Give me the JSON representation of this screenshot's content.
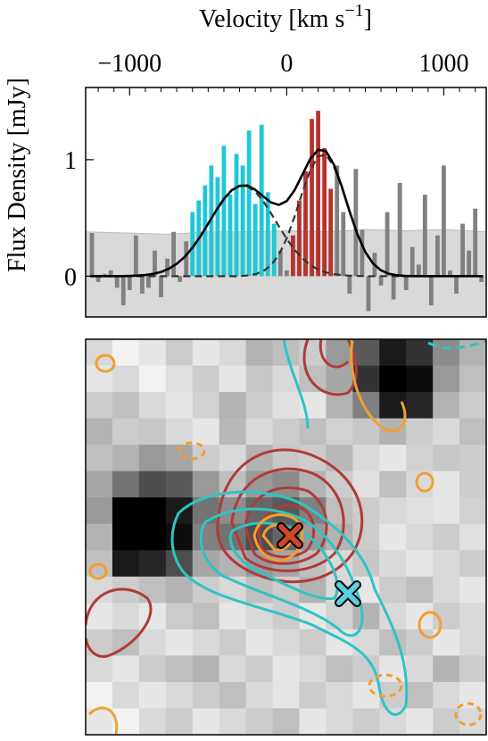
{
  "chart_data": [
    {
      "type": "spectrum",
      "xlabel": {
        "text": "Velocity [km s",
        "sup": "−1",
        "tail": "]"
      },
      "ylabel": "Flux Density [mJy]",
      "xlim": [
        -1280,
        1270
      ],
      "ylim": [
        -0.35,
        1.62
      ],
      "xticks": [
        {
          "value": -1000,
          "label": "−1000"
        },
        0,
        1000
      ],
      "xminorticks": [
        -1200,
        -1100,
        -900,
        -800,
        -700,
        -600,
        -500,
        -400,
        -300,
        -200,
        -100,
        100,
        200,
        300,
        400,
        500,
        600,
        700,
        800,
        900,
        1100,
        1200
      ],
      "yticks": [
        0,
        1
      ],
      "shade": {
        "color": "#d9d9d9",
        "x": [
          -1280,
          -1000,
          -750,
          -500,
          -250,
          0,
          250,
          500,
          750,
          1000,
          1270
        ],
        "values": [
          0.38,
          0.37,
          0.36,
          0.38,
          0.38,
          0.39,
          0.38,
          0.4,
          0.39,
          0.4,
          0.38
        ]
      },
      "series": [
        {
          "color": "#808080",
          "x": [
            -1240,
            -1200,
            -1160,
            -1120,
            -1080,
            -1040,
            -1000,
            -960,
            -920,
            -880,
            -840,
            -800,
            -760,
            -720,
            -680,
            -640,
            -40,
            0,
            320,
            360,
            400,
            440,
            480,
            520,
            560,
            600,
            640,
            680,
            720,
            760,
            800,
            840,
            880,
            920,
            960,
            1000,
            1040,
            1080,
            1120,
            1160,
            1200,
            1240
          ],
          "values": [
            0.37,
            -0.05,
            0.02,
            0.05,
            -0.1,
            -0.25,
            -0.12,
            0.35,
            -0.15,
            -0.1,
            0.22,
            -0.18,
            0.15,
            0.38,
            -0.05,
            0.3,
            0.22,
            0.05,
            0.95,
            0.55,
            -0.15,
            0.92,
            0.4,
            -0.3,
            0.2,
            -0.08,
            0.55,
            -0.2,
            0.8,
            -0.12,
            0.25,
            0.1,
            0.7,
            -0.25,
            0.35,
            0.95,
            0.05,
            -0.15,
            0.45,
            0.22,
            0.58,
            -0.05
          ]
        },
        {
          "color": "#1fc8d6",
          "x": [
            -600,
            -560,
            -520,
            -480,
            -440,
            -400,
            -360,
            -320,
            -280,
            -240,
            -200,
            -160,
            -120,
            -80
          ],
          "values": [
            0.55,
            0.65,
            0.78,
            0.95,
            0.85,
            1.12,
            0.7,
            1.05,
            0.95,
            1.25,
            0.62,
            1.3,
            0.72,
            0.45
          ]
        },
        {
          "color": "#b8322e",
          "x": [
            40,
            80,
            120,
            160,
            200,
            240,
            280
          ],
          "values": [
            0.35,
            0.65,
            0.9,
            1.35,
            1.42,
            1.1,
            0.75
          ]
        }
      ],
      "fit_x": [
        -1250,
        -1200,
        -1150,
        -1100,
        -1050,
        -1000,
        -950,
        -900,
        -850,
        -800,
        -750,
        -700,
        -650,
        -600,
        -550,
        -500,
        -450,
        -400,
        -350,
        -300,
        -250,
        -200,
        -150,
        -100,
        -50,
        0,
        50,
        100,
        150,
        200,
        250,
        300,
        350,
        400,
        450,
        500,
        550,
        600,
        650,
        700,
        750,
        800,
        850,
        900,
        950,
        1000,
        1050,
        1100,
        1150,
        1200,
        1250
      ],
      "lines": [
        {
          "color": "#333333",
          "style": "dashed",
          "values": [
            0,
            0,
            0,
            0,
            0,
            0.002,
            0.005,
            0.01,
            0.02,
            0.036,
            0.064,
            0.106,
            0.165,
            0.244,
            0.341,
            0.451,
            0.562,
            0.663,
            0.738,
            0.776,
            0.772,
            0.725,
            0.644,
            0.54,
            0.428,
            0.321,
            0.227,
            0.152,
            0.096,
            0.057,
            0.032,
            0.017,
            0.009,
            0.004,
            0.002,
            0,
            0,
            0,
            0,
            0,
            0,
            0,
            0,
            0,
            0,
            0,
            0,
            0,
            0,
            0,
            0
          ]
        },
        {
          "color": "#333333",
          "style": "dashed",
          "values": [
            0,
            0,
            0,
            0,
            0,
            0,
            0,
            0,
            0,
            0,
            0,
            0,
            0,
            0,
            0,
            0,
            0,
            0,
            0,
            0,
            0.006,
            0.017,
            0.042,
            0.093,
            0.184,
            0.324,
            0.511,
            0.721,
            0.911,
            1.029,
            1.041,
            0.942,
            0.763,
            0.553,
            0.358,
            0.208,
            0.108,
            0.05,
            0.021,
            0.008,
            0.002,
            0,
            0,
            0,
            0,
            0,
            0,
            0,
            0,
            0,
            0
          ]
        },
        {
          "color": "#000000",
          "style": "solid",
          "values": [
            0,
            0,
            0,
            0,
            0,
            0.002,
            0.005,
            0.01,
            0.02,
            0.036,
            0.064,
            0.106,
            0.165,
            0.244,
            0.341,
            0.451,
            0.562,
            0.663,
            0.738,
            0.776,
            0.778,
            0.742,
            0.686,
            0.633,
            0.612,
            0.645,
            0.738,
            0.873,
            1.007,
            1.086,
            1.073,
            0.959,
            0.772,
            0.557,
            0.36,
            0.208,
            0.108,
            0.05,
            0.021,
            0.008,
            0.002,
            0,
            0,
            0,
            0,
            0,
            0,
            0,
            0,
            0,
            0
          ]
        }
      ]
    },
    {
      "type": "image",
      "pixels": [
        [
          0.85,
          0.95,
          0.9,
          0.8,
          0.9,
          0.85,
          0.7,
          0.75,
          0.8,
          0.6,
          0.35,
          0.1,
          0.2,
          0.55,
          0.7
        ],
        [
          0.9,
          0.85,
          0.95,
          0.88,
          0.8,
          0.9,
          0.78,
          0.85,
          0.75,
          0.65,
          0.2,
          0.0,
          0.05,
          0.6,
          0.75
        ],
        [
          0.8,
          0.75,
          0.85,
          0.9,
          0.82,
          0.7,
          0.8,
          0.88,
          0.9,
          0.7,
          0.5,
          0.1,
          0.15,
          0.7,
          0.8
        ],
        [
          0.7,
          0.8,
          0.78,
          0.85,
          0.9,
          0.72,
          0.85,
          0.8,
          0.75,
          0.82,
          0.78,
          0.7,
          0.8,
          0.85,
          0.75
        ],
        [
          0.75,
          0.7,
          0.6,
          0.65,
          0.8,
          0.85,
          0.7,
          0.78,
          0.8,
          0.72,
          0.85,
          0.9,
          0.82,
          0.78,
          0.8
        ],
        [
          0.65,
          0.45,
          0.3,
          0.35,
          0.6,
          0.75,
          0.6,
          0.55,
          0.7,
          0.8,
          0.88,
          0.75,
          0.85,
          0.9,
          0.8
        ],
        [
          0.6,
          0.0,
          0.0,
          0.1,
          0.45,
          0.55,
          0.4,
          0.35,
          0.5,
          0.75,
          0.8,
          0.85,
          0.88,
          0.9,
          0.82
        ],
        [
          0.7,
          0.0,
          0.0,
          0.05,
          0.5,
          0.45,
          0.3,
          0.4,
          0.6,
          0.7,
          0.8,
          0.9,
          0.85,
          0.8,
          0.88
        ],
        [
          0.75,
          0.1,
          0.15,
          0.3,
          0.65,
          0.7,
          0.6,
          0.65,
          0.75,
          0.85,
          0.78,
          0.85,
          0.9,
          0.85,
          0.8
        ],
        [
          0.85,
          0.8,
          0.75,
          0.7,
          0.8,
          0.85,
          0.75,
          0.8,
          0.7,
          0.85,
          0.9,
          0.8,
          0.75,
          0.85,
          0.9
        ],
        [
          0.9,
          0.85,
          0.9,
          0.8,
          0.75,
          0.9,
          0.85,
          0.8,
          0.9,
          0.82,
          0.7,
          0.85,
          0.9,
          0.8,
          0.85
        ],
        [
          0.8,
          0.75,
          0.85,
          0.9,
          0.85,
          0.8,
          0.9,
          0.85,
          0.8,
          0.9,
          0.85,
          0.75,
          0.8,
          0.9,
          0.85
        ],
        [
          0.85,
          0.9,
          0.8,
          0.75,
          0.7,
          0.85,
          0.8,
          0.9,
          0.85,
          0.75,
          0.8,
          0.9,
          0.85,
          0.7,
          0.8
        ],
        [
          0.95,
          0.85,
          0.9,
          0.85,
          0.8,
          0.75,
          0.85,
          0.9,
          0.8,
          0.85,
          0.9,
          0.8,
          0.75,
          0.85,
          0.9
        ],
        [
          0.9,
          0.95,
          0.85,
          0.8,
          0.9,
          0.85,
          0.8,
          0.75,
          0.9,
          0.85,
          0.8,
          0.85,
          0.9,
          0.8,
          0.85
        ]
      ]
    }
  ]
}
